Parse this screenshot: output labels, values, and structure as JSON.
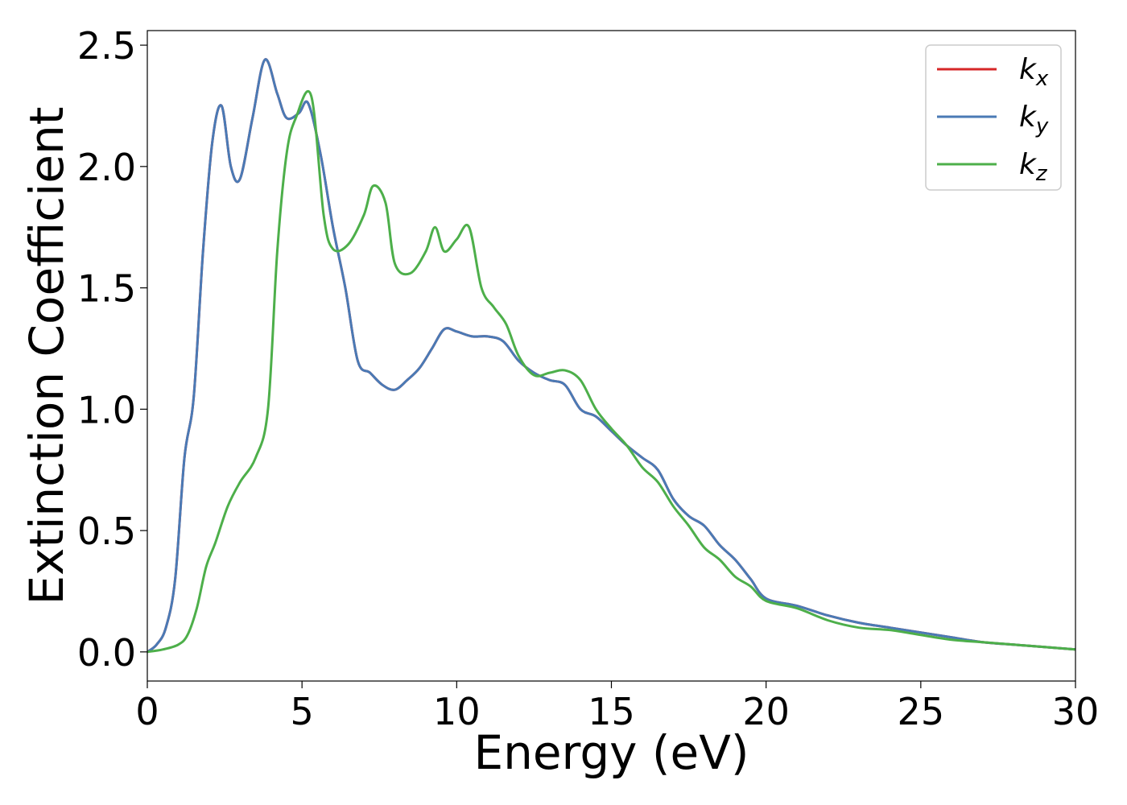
{
  "chart_data": {
    "type": "line",
    "title": "",
    "xlabel": "Energy (eV)",
    "ylabel": "Extinction Coefficient",
    "xlim": [
      0,
      30
    ],
    "ylim": [
      -0.12,
      2.56
    ],
    "xticks": [
      0,
      5,
      10,
      15,
      20,
      25,
      30
    ],
    "xtick_labels": [
      "0",
      "5",
      "10",
      "15",
      "20",
      "25",
      "30"
    ],
    "yticks": [
      0.0,
      0.5,
      1.0,
      1.5,
      2.0,
      2.5
    ],
    "ytick_labels": [
      "0.0",
      "0.5",
      "1.0",
      "1.5",
      "2.0",
      "2.5"
    ],
    "grid": false,
    "legend_position": "top-right",
    "series": [
      {
        "name": "k",
        "subscript": "x",
        "color": "#d62728",
        "x": [
          0,
          0.3,
          0.6,
          0.9,
          1.2,
          1.5,
          1.8,
          2.1,
          2.4,
          2.7,
          3.0,
          3.4,
          3.8,
          4.2,
          4.5,
          4.9,
          5.2,
          5.6,
          6.0,
          6.4,
          6.8,
          7.2,
          7.6,
          8.0,
          8.4,
          8.8,
          9.2,
          9.6,
          10.0,
          10.5,
          11.0,
          11.5,
          12.0,
          12.5,
          13.0,
          13.5,
          14.0,
          14.5,
          15.0,
          15.5,
          16.0,
          16.5,
          17.0,
          17.5,
          18.0,
          18.5,
          19.0,
          19.5,
          20.0,
          21.0,
          22.0,
          23.0,
          24.0,
          25.0,
          26.0,
          27.0,
          28.0,
          29.0,
          30.0
        ],
        "values": [
          0.0,
          0.03,
          0.1,
          0.3,
          0.8,
          1.05,
          1.65,
          2.1,
          2.25,
          2.0,
          1.95,
          2.2,
          2.44,
          2.3,
          2.2,
          2.22,
          2.26,
          2.05,
          1.75,
          1.5,
          1.2,
          1.15,
          1.1,
          1.08,
          1.12,
          1.17,
          1.25,
          1.33,
          1.32,
          1.3,
          1.3,
          1.28,
          1.2,
          1.15,
          1.12,
          1.1,
          1.0,
          0.97,
          0.91,
          0.85,
          0.8,
          0.75,
          0.63,
          0.56,
          0.52,
          0.44,
          0.38,
          0.3,
          0.22,
          0.19,
          0.15,
          0.12,
          0.1,
          0.08,
          0.06,
          0.04,
          0.03,
          0.02,
          0.01
        ]
      },
      {
        "name": "k",
        "subscript": "y",
        "color": "#4a7ab5",
        "x": [
          0,
          0.3,
          0.6,
          0.9,
          1.2,
          1.5,
          1.8,
          2.1,
          2.4,
          2.7,
          3.0,
          3.4,
          3.8,
          4.2,
          4.5,
          4.9,
          5.2,
          5.6,
          6.0,
          6.4,
          6.8,
          7.2,
          7.6,
          8.0,
          8.4,
          8.8,
          9.2,
          9.6,
          10.0,
          10.5,
          11.0,
          11.5,
          12.0,
          12.5,
          13.0,
          13.5,
          14.0,
          14.5,
          15.0,
          15.5,
          16.0,
          16.5,
          17.0,
          17.5,
          18.0,
          18.5,
          19.0,
          19.5,
          20.0,
          21.0,
          22.0,
          23.0,
          24.0,
          25.0,
          26.0,
          27.0,
          28.0,
          29.0,
          30.0
        ],
        "values": [
          0.0,
          0.03,
          0.1,
          0.3,
          0.8,
          1.05,
          1.65,
          2.1,
          2.25,
          2.0,
          1.95,
          2.2,
          2.44,
          2.3,
          2.2,
          2.22,
          2.26,
          2.05,
          1.75,
          1.5,
          1.2,
          1.15,
          1.1,
          1.08,
          1.12,
          1.17,
          1.25,
          1.33,
          1.32,
          1.3,
          1.3,
          1.28,
          1.2,
          1.15,
          1.12,
          1.1,
          1.0,
          0.97,
          0.91,
          0.85,
          0.8,
          0.75,
          0.63,
          0.56,
          0.52,
          0.44,
          0.38,
          0.3,
          0.22,
          0.19,
          0.15,
          0.12,
          0.1,
          0.08,
          0.06,
          0.04,
          0.03,
          0.02,
          0.01
        ]
      },
      {
        "name": "k",
        "subscript": "z",
        "color": "#4daf4a",
        "x": [
          0,
          0.5,
          1.0,
          1.3,
          1.6,
          1.9,
          2.2,
          2.6,
          3.0,
          3.5,
          3.9,
          4.2,
          4.5,
          4.8,
          5.3,
          5.7,
          6.0,
          6.5,
          7.0,
          7.3,
          7.7,
          8.0,
          8.5,
          9.0,
          9.3,
          9.6,
          10.0,
          10.4,
          10.8,
          11.2,
          11.6,
          12.0,
          12.5,
          13.0,
          13.5,
          14.0,
          14.5,
          15.0,
          15.5,
          16.0,
          16.5,
          17.0,
          17.5,
          18.0,
          18.5,
          19.0,
          19.5,
          20.0,
          21.0,
          22.0,
          23.0,
          24.0,
          25.0,
          26.0,
          27.0,
          28.0,
          29.0,
          30.0
        ],
        "values": [
          0.0,
          0.01,
          0.03,
          0.07,
          0.18,
          0.35,
          0.45,
          0.6,
          0.7,
          0.8,
          1.0,
          1.65,
          2.05,
          2.2,
          2.29,
          1.8,
          1.66,
          1.68,
          1.8,
          1.92,
          1.85,
          1.6,
          1.56,
          1.65,
          1.75,
          1.65,
          1.7,
          1.75,
          1.5,
          1.42,
          1.35,
          1.22,
          1.14,
          1.15,
          1.16,
          1.12,
          1.0,
          0.92,
          0.85,
          0.76,
          0.7,
          0.6,
          0.52,
          0.43,
          0.38,
          0.31,
          0.27,
          0.21,
          0.18,
          0.13,
          0.1,
          0.09,
          0.07,
          0.05,
          0.04,
          0.03,
          0.02,
          0.01
        ]
      }
    ]
  }
}
